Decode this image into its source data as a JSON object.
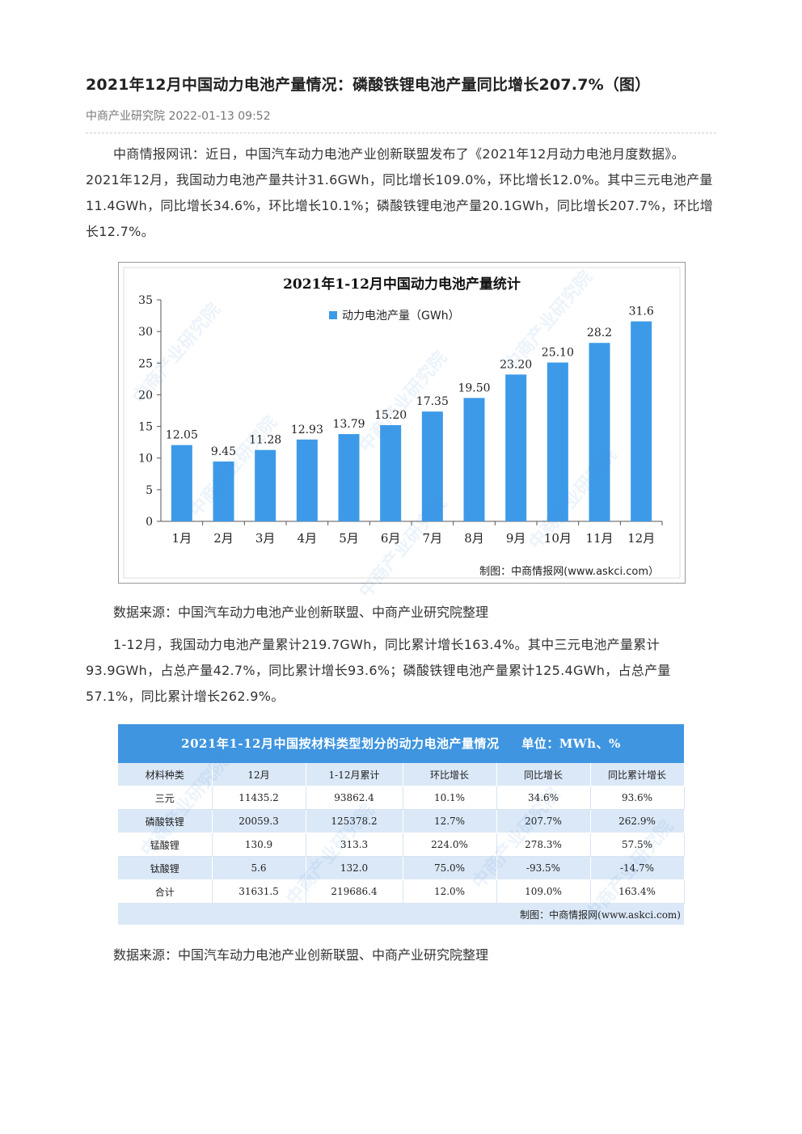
{
  "article": {
    "title": "2021年12月中国动力电池产量情况：磷酸铁锂电池产量同比增长207.7%（图）",
    "meta": "中商产业研究院 2022-01-13 09:52",
    "paragraph1": "中商情报网讯：近日，中国汽车动力电池产业创新联盟发布了《2021年12月动力电池月度数据》。2021年12月，我国动力电池产量共计31.6GWh，同比增长109.0%，环比增长12.0%。其中三元电池产量11.4GWh，同比增长34.6%，环比增长10.1%；磷酸铁锂电池产量20.1GWh，同比增长207.7%，环比增长12.7%。",
    "source1": "数据来源：中国汽车动力电池产业创新联盟、中商产业研究院整理",
    "paragraph2": "1-12月，我国动力电池产量累计219.7GWh，同比累计增长163.4%。其中三元电池产量累计93.9GWh，占总产量42.7%，同比累计增长93.6%；磷酸铁锂电池产量累计125.4GWh，占总产量57.1%，同比累计增长262.9%。",
    "source2": "数据来源：中国汽车动力电池产业创新联盟、中商产业研究院整理"
  },
  "chart_data": {
    "type": "bar",
    "title": "2021年1-12月中国动力电池产量统计",
    "categories": [
      "1月",
      "2月",
      "3月",
      "4月",
      "5月",
      "6月",
      "7月",
      "8月",
      "9月",
      "10月",
      "11月",
      "12月"
    ],
    "series": [
      {
        "name": "动力电池产量（GWh）",
        "values": [
          12.05,
          9.45,
          11.28,
          12.93,
          13.79,
          15.2,
          17.35,
          19.5,
          23.2,
          25.1,
          28.2,
          31.6
        ]
      }
    ],
    "value_labels": [
      "12.05",
      "9.45",
      "11.28",
      "12.93",
      "13.79",
      "15.20",
      "17.35",
      "19.50",
      "23.20",
      "25.10",
      "28.2",
      "31.6"
    ],
    "yticks": [
      "0",
      "5",
      "10",
      "15",
      "20",
      "25",
      "30",
      "35"
    ],
    "ylim": [
      0,
      35
    ],
    "bar_color": "#3d9ae8",
    "legend_position": "top-left",
    "credit": "制图：中商情报网(www.askci.com）"
  },
  "table": {
    "title": "2021年1-12月中国按材料类型划分的动力电池产量情况",
    "unit": "单位：MWh、%",
    "columns": [
      "材料种类",
      "12月",
      "1-12月累计",
      "环比增长",
      "同比增长",
      "同比累计增长"
    ],
    "rows": [
      [
        "三元",
        "11435.2",
        "93862.4",
        "10.1%",
        "34.6%",
        "93.6%"
      ],
      [
        "磷酸铁锂",
        "20059.3",
        "125378.2",
        "12.7%",
        "207.7%",
        "262.9%"
      ],
      [
        "锰酸锂",
        "130.9",
        "313.3",
        "224.0%",
        "278.3%",
        "57.5%"
      ],
      [
        "钛酸锂",
        "5.6",
        "132.0",
        "75.0%",
        "-93.5%",
        "-14.7%"
      ],
      [
        "合计",
        "31631.5",
        "219686.4",
        "12.0%",
        "109.0%",
        "163.4%"
      ]
    ],
    "credit": "制图：中商情报网(www.askci.com)",
    "header_color": "#3f95e0"
  },
  "watermark": "中商产业研究院"
}
